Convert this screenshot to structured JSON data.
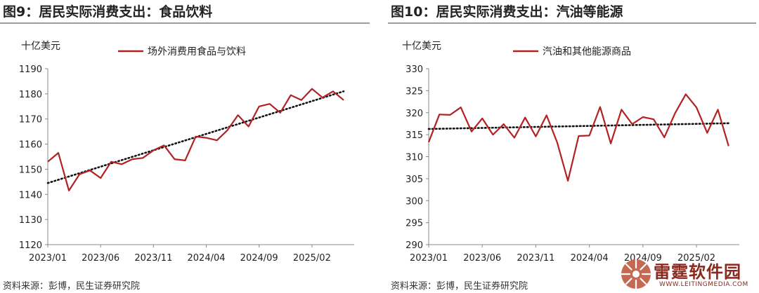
{
  "left": {
    "title": "图9：居民实际消费支出：食品饮料",
    "source": "资料来源：彭博，民生证券研究院"
  },
  "right": {
    "title": "图10：居民实际消费支出：汽油等能源",
    "source": "资料来源：彭博，民生证券研究院"
  },
  "logo": {
    "name": "雷霆软件园",
    "url": "WWW.LEITINGMEDIA.COM"
  },
  "colors": {
    "series": "#b22222",
    "trend": "#111111",
    "axis": "#888888"
  },
  "chart_data": [
    {
      "type": "line",
      "unit_label": "十亿美元",
      "ylim": [
        1120,
        1190
      ],
      "yticks": [
        1120,
        1130,
        1140,
        1150,
        1160,
        1170,
        1180,
        1190
      ],
      "xlim": [
        0,
        29
      ],
      "xticks": [
        "2023/01",
        "2023/06",
        "2023/11",
        "2024/04",
        "2024/09",
        "2025/02"
      ],
      "legend_position": "top",
      "series": [
        {
          "name": "场外消费用食品与饮料",
          "values": [
            1153,
            1156.5,
            1141.5,
            1148,
            1149.5,
            1146.5,
            1153,
            1152,
            1154,
            1154.5,
            1157.5,
            1159.5,
            1154,
            1153.5,
            1163,
            1162.5,
            1161.5,
            1165.5,
            1171.5,
            1167,
            1175,
            1176,
            1172.5,
            1179.5,
            1177.5,
            1182,
            1178.5,
            1181,
            1177.5
          ]
        }
      ],
      "trendline": {
        "start": 1144.5,
        "end": 1181
      },
      "grid": false
    },
    {
      "type": "line",
      "unit_label": "十亿美元",
      "ylim": [
        290,
        330
      ],
      "yticks": [
        290,
        295,
        300,
        305,
        310,
        315,
        320,
        325,
        330
      ],
      "xlim": [
        0,
        29
      ],
      "xticks": [
        "2023/01",
        "2023/06",
        "2023/11",
        "2024/04",
        "2024/09",
        "2025/02"
      ],
      "legend_position": "top",
      "series": [
        {
          "name": "汽油和其他能源商品",
          "values": [
            313.3,
            319.6,
            319.5,
            321.2,
            315.7,
            318.7,
            315.0,
            317.4,
            314.3,
            318.9,
            314.6,
            319.4,
            313.2,
            304.5,
            314.7,
            314.8,
            321.3,
            313.0,
            320.7,
            317.4,
            319.0,
            318.5,
            314.4,
            319.9,
            324.2,
            321.2,
            315.4,
            320.7,
            312.4
          ]
        }
      ],
      "trendline": {
        "start": 316.3,
        "end": 317.6
      },
      "grid": false
    }
  ]
}
